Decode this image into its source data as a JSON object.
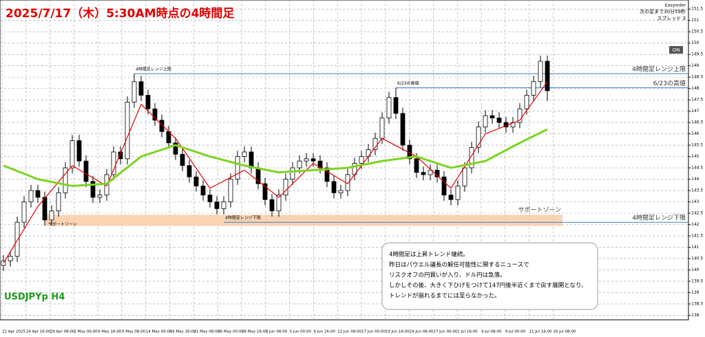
{
  "chart_data": {
    "type": "candlestick",
    "title": "2025/7/17（木）5:30AM時点の4時間足",
    "symbol": "USDJPYp H4",
    "info": [
      "Easyorder",
      "次の足まで30分59秒",
      "スプレッド 3"
    ],
    "button": "ON",
    "comment": [
      "4時間足は上昇トレンド継続。",
      "昨日はパウエル議長の解任可能性に関するニュースで",
      "リスクオフの円買いが入り、ドル円は急落。",
      "しかしその後、大きく下ひげをつけて147円後半近くまで戻す展開となり、",
      "トレンドが崩れるまでには至らなかった。"
    ],
    "time_labels": [
      "22 Apr 2025",
      "24 Apr 16:00",
      "29 Apr 08:00",
      "2 May 00:00",
      "6 May 16:00",
      "9 May 08:00",
      "14 May 00:00",
      "16 May 16:00",
      "21 May 08:00",
      "26 May 00:00",
      "28 May 16:00",
      "2 Jun 08:00",
      "5 Jun 00:00",
      "9 Jun 16:00",
      "12 Jun 08:00",
      "17 Jun 00:00",
      "19 Jun 16:00",
      "24 Jun 08:00",
      "27 Jun 00:00",
      "1 Jul 16:00",
      "4 Jul 08:00",
      "9 Jul 00:00",
      "11 Jul 16:00",
      "16 Jul 08:00"
    ],
    "ylim": [
      137.8,
      151.9
    ],
    "yticks": [
      138,
      138.5,
      139,
      139.5,
      140,
      140.5,
      141,
      141.5,
      142,
      142.5,
      143,
      143.5,
      144,
      144.5,
      145,
      145.5,
      146,
      146.5,
      147,
      147.5,
      148,
      148.5,
      149,
      149.5,
      150,
      150.5,
      151,
      151.5
    ],
    "grid": true,
    "candles": [
      [
        140.2,
        140.65,
        139.95,
        140.4
      ],
      [
        140.4,
        140.85,
        140.15,
        140.6
      ],
      [
        140.6,
        142.35,
        140.35,
        142.1
      ],
      [
        142.1,
        143.25,
        141.85,
        143.0
      ],
      [
        143.0,
        143.75,
        142.75,
        143.5
      ],
      [
        143.5,
        143.75,
        142.95,
        143.2
      ],
      [
        143.2,
        143.45,
        141.95,
        142.2
      ],
      [
        142.2,
        142.85,
        141.95,
        142.6
      ],
      [
        142.6,
        143.65,
        142.35,
        143.4
      ],
      [
        143.4,
        144.75,
        143.15,
        144.5
      ],
      [
        144.5,
        145.95,
        144.25,
        145.7
      ],
      [
        145.7,
        145.95,
        144.55,
        144.8
      ],
      [
        144.8,
        145.05,
        143.65,
        143.9
      ],
      [
        143.9,
        144.15,
        142.95,
        143.2
      ],
      [
        143.2,
        143.55,
        142.95,
        143.3
      ],
      [
        143.3,
        144.45,
        143.05,
        144.2
      ],
      [
        144.2,
        145.45,
        143.95,
        145.2
      ],
      [
        145.2,
        145.45,
        144.65,
        144.9
      ],
      [
        144.9,
        147.65,
        144.65,
        147.4
      ],
      [
        147.4,
        148.65,
        147.15,
        148.3
      ],
      [
        148.3,
        148.55,
        147.45,
        147.7
      ],
      [
        147.7,
        147.95,
        146.85,
        147.1
      ],
      [
        147.1,
        147.35,
        146.35,
        146.6
      ],
      [
        146.6,
        146.85,
        145.85,
        146.1
      ],
      [
        146.1,
        146.35,
        145.35,
        145.6
      ],
      [
        145.6,
        145.85,
        144.85,
        145.1
      ],
      [
        145.1,
        145.35,
        144.35,
        144.6
      ],
      [
        144.6,
        144.85,
        143.85,
        144.1
      ],
      [
        144.1,
        144.35,
        143.45,
        143.7
      ],
      [
        143.7,
        143.95,
        143.05,
        143.3
      ],
      [
        143.3,
        143.55,
        142.75,
        143.0
      ],
      [
        143.0,
        143.25,
        142.45,
        142.7
      ],
      [
        142.7,
        143.25,
        142.45,
        143.0
      ],
      [
        143.0,
        144.25,
        142.75,
        144.0
      ],
      [
        144.0,
        145.25,
        143.75,
        145.0
      ],
      [
        145.0,
        145.45,
        144.75,
        145.2
      ],
      [
        145.2,
        145.45,
        144.25,
        144.5
      ],
      [
        144.5,
        144.75,
        143.55,
        143.8
      ],
      [
        143.8,
        144.05,
        142.85,
        143.1
      ],
      [
        143.1,
        143.35,
        142.35,
        142.6
      ],
      [
        142.6,
        143.55,
        142.35,
        143.3
      ],
      [
        143.3,
        144.25,
        143.05,
        144.0
      ],
      [
        144.0,
        144.75,
        143.75,
        144.5
      ],
      [
        144.5,
        145.05,
        144.25,
        144.8
      ],
      [
        144.8,
        145.15,
        144.55,
        144.9
      ],
      [
        144.9,
        145.15,
        144.55,
        144.8
      ],
      [
        144.8,
        145.05,
        144.25,
        144.5
      ],
      [
        144.5,
        144.75,
        143.65,
        143.9
      ],
      [
        143.9,
        144.15,
        143.15,
        143.4
      ],
      [
        143.4,
        143.75,
        143.15,
        143.5
      ],
      [
        143.5,
        144.45,
        143.25,
        144.2
      ],
      [
        144.2,
        144.95,
        143.95,
        144.7
      ],
      [
        144.7,
        145.25,
        144.45,
        145.0
      ],
      [
        145.0,
        145.55,
        144.75,
        145.3
      ],
      [
        145.3,
        146.05,
        145.05,
        145.8
      ],
      [
        145.8,
        146.95,
        145.55,
        146.7
      ],
      [
        146.7,
        147.85,
        146.45,
        147.6
      ],
      [
        147.6,
        148.03,
        146.65,
        146.9
      ],
      [
        146.9,
        147.15,
        145.25,
        145.5
      ],
      [
        145.5,
        145.75,
        144.65,
        144.9
      ],
      [
        144.9,
        145.15,
        144.05,
        144.3
      ],
      [
        144.3,
        144.55,
        143.95,
        144.2
      ],
      [
        144.2,
        144.65,
        143.95,
        144.4
      ],
      [
        144.4,
        144.65,
        143.85,
        144.1
      ],
      [
        144.1,
        144.35,
        143.05,
        143.3
      ],
      [
        143.3,
        143.55,
        142.85,
        143.1
      ],
      [
        143.1,
        143.95,
        142.85,
        143.7
      ],
      [
        143.7,
        144.75,
        143.45,
        144.5
      ],
      [
        144.5,
        145.65,
        144.25,
        145.4
      ],
      [
        145.4,
        146.55,
        145.15,
        146.3
      ],
      [
        146.3,
        147.05,
        146.05,
        146.8
      ],
      [
        146.8,
        147.05,
        146.45,
        146.7
      ],
      [
        146.7,
        146.95,
        146.25,
        146.5
      ],
      [
        146.5,
        146.75,
        146.05,
        146.3
      ],
      [
        146.3,
        146.75,
        146.05,
        146.5
      ],
      [
        146.5,
        147.35,
        146.25,
        147.1
      ],
      [
        147.1,
        147.95,
        146.85,
        147.7
      ],
      [
        147.7,
        148.55,
        147.45,
        148.3
      ],
      [
        148.3,
        149.45,
        148.05,
        149.2
      ],
      [
        149.2,
        149.45,
        147.45,
        147.9
      ]
    ],
    "moving_averages": [
      {
        "color": "#e00000",
        "x": [
          0,
          5,
          10,
          15,
          20,
          25,
          30,
          35,
          40,
          45,
          50,
          55,
          60,
          65,
          70,
          75,
          79
        ],
        "values": [
          140.3,
          142.8,
          144.6,
          143.7,
          147.3,
          145.8,
          143.6,
          144.4,
          143.2,
          144.7,
          143.8,
          145.8,
          145.0,
          143.6,
          146.0,
          146.6,
          148.3
        ]
      },
      {
        "color": "#7ed321",
        "x": [
          0,
          5,
          10,
          15,
          20,
          25,
          30,
          35,
          40,
          45,
          50,
          55,
          60,
          65,
          70,
          75,
          79
        ],
        "values": [
          144.6,
          144.0,
          143.7,
          143.8,
          145.0,
          145.5,
          145.0,
          144.6,
          144.3,
          144.4,
          144.5,
          144.8,
          145.0,
          144.5,
          144.8,
          145.6,
          146.2
        ]
      }
    ],
    "levels": [
      {
        "label": "4時間足レンジ上限",
        "value": 148.65,
        "from": 19
      },
      {
        "label": "6/23の高値",
        "value": 148.03,
        "from": 57
      },
      {
        "label": "4時間足レンジ下限",
        "value": 142.1,
        "from": 32
      }
    ],
    "support_zone": {
      "label": "サポートゾーン",
      "top": 142.43,
      "bottom": 141.94
    }
  }
}
